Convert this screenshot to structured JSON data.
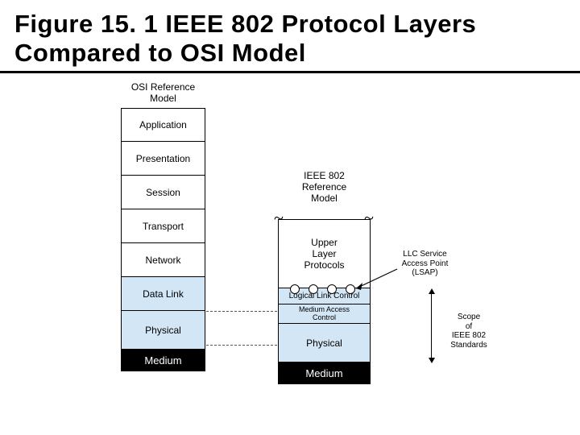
{
  "title": "Figure 15. 1 IEEE 802 Protocol Layers Compared to OSI Model",
  "columns": {
    "osi": {
      "label_line1": "OSI Reference",
      "label_line2": "Model"
    },
    "ieee": {
      "label_line1": "IEEE 802",
      "label_line2": "Reference",
      "label_line3": "Model"
    }
  },
  "osi_layers": [
    "Application",
    "Presentation",
    "Session",
    "Transport",
    "Network",
    "Data Link",
    "Physical"
  ],
  "ieee_layers": {
    "upper": "Upper\nLayer\nProtocols",
    "llc": "Logical Link Control",
    "mac": "Medium Access\nControl",
    "physical": "Physical"
  },
  "medium": "Medium",
  "annotations": {
    "lsap": "LLC Service\nAccess Point\n(LSAP)",
    "scope": "Scope\nof\nIEEE 802\nStandards"
  },
  "colors": {
    "tint": "#d3e6f5",
    "medium_bg": "#000000",
    "medium_fg": "#ffffff",
    "border": "#000000"
  }
}
